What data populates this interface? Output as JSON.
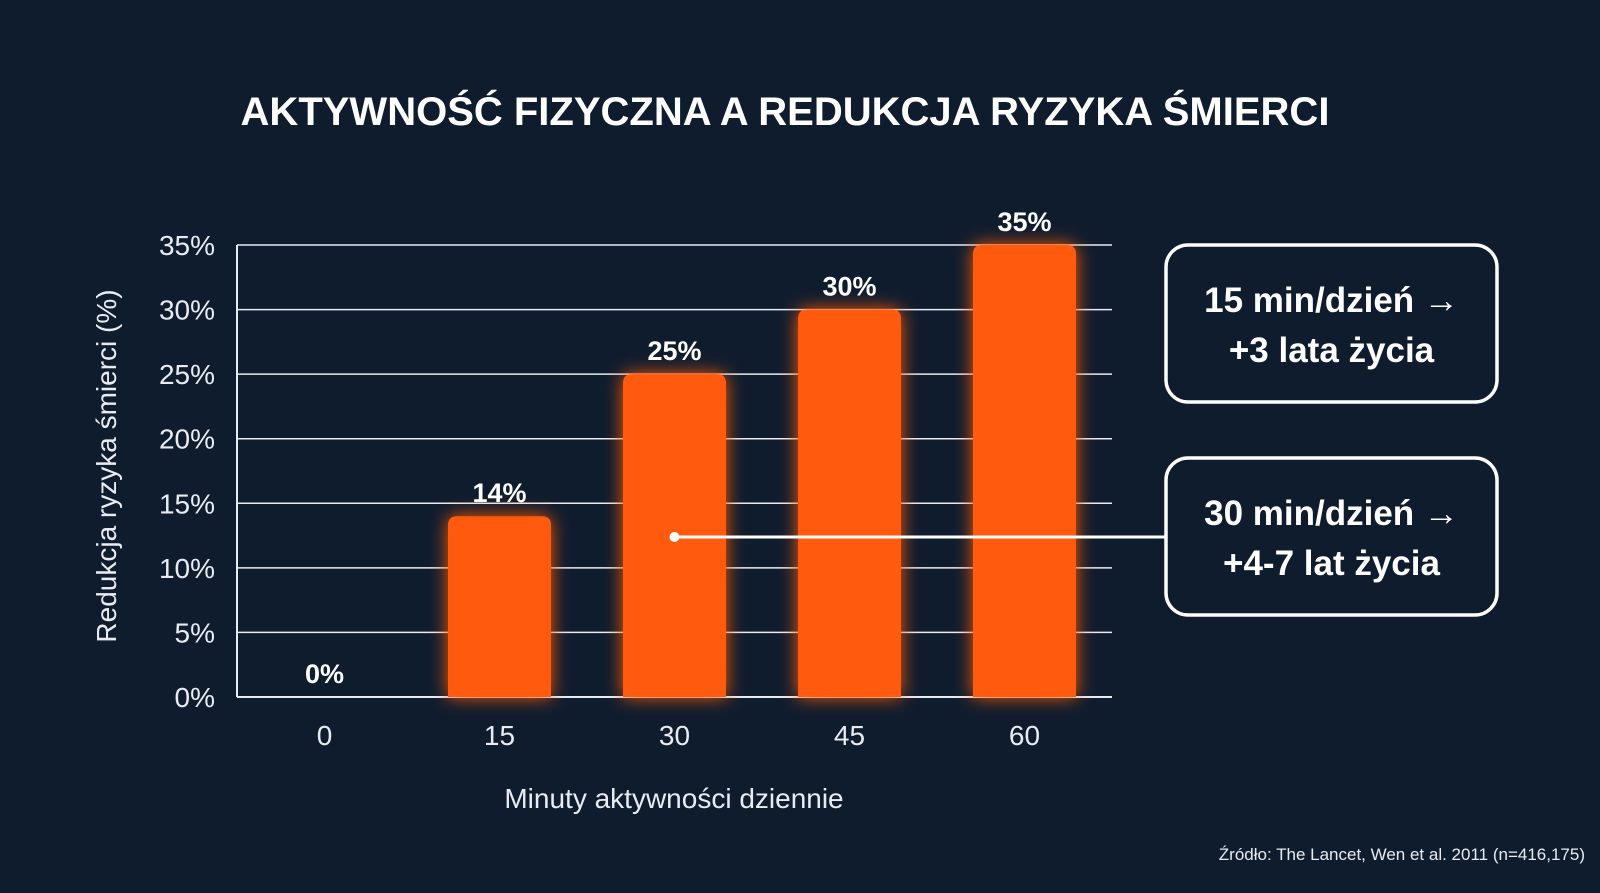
{
  "chart_data": {
    "type": "bar",
    "title": "AKTYWNOŚĆ FIZYCZNA A REDUKCJA RYZYKA ŚMIERCI",
    "xlabel": "Minuty aktywności dziennie",
    "ylabel": "Redukcja ryzyka śmierci (%)",
    "categories": [
      "0",
      "15",
      "30",
      "45",
      "60"
    ],
    "values": [
      0,
      14,
      25,
      30,
      35
    ],
    "data_labels": [
      "0%",
      "14%",
      "25%",
      "30%",
      "35%"
    ],
    "ylim": [
      0,
      35
    ],
    "yticks": [
      0,
      5,
      10,
      15,
      20,
      25,
      30,
      35
    ],
    "ytick_labels": [
      "0%",
      "5%",
      "10%",
      "15%",
      "20%",
      "25%",
      "30%",
      "35%"
    ],
    "grid": true,
    "bar_color": "#ff5a0c",
    "annotations": [
      {
        "lines": [
          "15 min/dzień →",
          "+3 lata życia"
        ]
      },
      {
        "lines": [
          "30 min/dzień →",
          "+4-7 lat życia"
        ],
        "points_to_category": "30",
        "points_to_value": 12.5
      }
    ],
    "source": "Źródło: The Lancet, Wen et al. 2011 (n=416,175)"
  },
  "colors": {
    "background": "#0f1c2e",
    "bar": "#ff5a0c",
    "text": "#ffffff"
  }
}
